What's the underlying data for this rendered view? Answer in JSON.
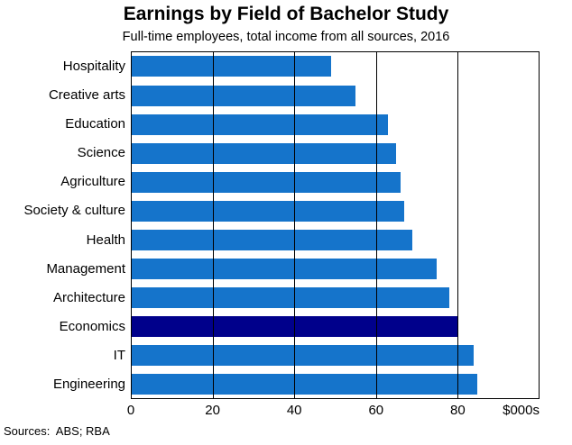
{
  "title": "Earnings by Field of Bachelor Study",
  "subtitle": "Full-time employees, total income from all sources, 2016",
  "source_note": "Sources:  ABS; RBA",
  "colors": {
    "bar": "#1574CB",
    "highlight": "#00008B",
    "grid": "#000000",
    "frame": "#000000",
    "background": "#FFFFFF"
  },
  "chart_data": {
    "type": "bar",
    "orientation": "horizontal",
    "title": "Earnings by Field of Bachelor Study",
    "subtitle": "Full-time employees, total income from all sources, 2016",
    "categories": [
      "Hospitality",
      "Creative arts",
      "Education",
      "Science",
      "Agriculture",
      "Society & culture",
      "Health",
      "Management",
      "Architecture",
      "Economics",
      "IT",
      "Engineering"
    ],
    "values": [
      49,
      55,
      63,
      65,
      66,
      67,
      69,
      75,
      78,
      80,
      84,
      85
    ],
    "highlight_category": "Economics",
    "highlight_note": "Economics bar is dark navy; all other bars medium blue",
    "xlabel": "$000s",
    "xlim": [
      0,
      100
    ],
    "xticks": [
      0,
      20,
      40,
      60,
      80
    ],
    "grid": "vertical solid black gridlines at each tick, drawn over bars",
    "legend": "none",
    "frame": "full black box around plot area"
  }
}
